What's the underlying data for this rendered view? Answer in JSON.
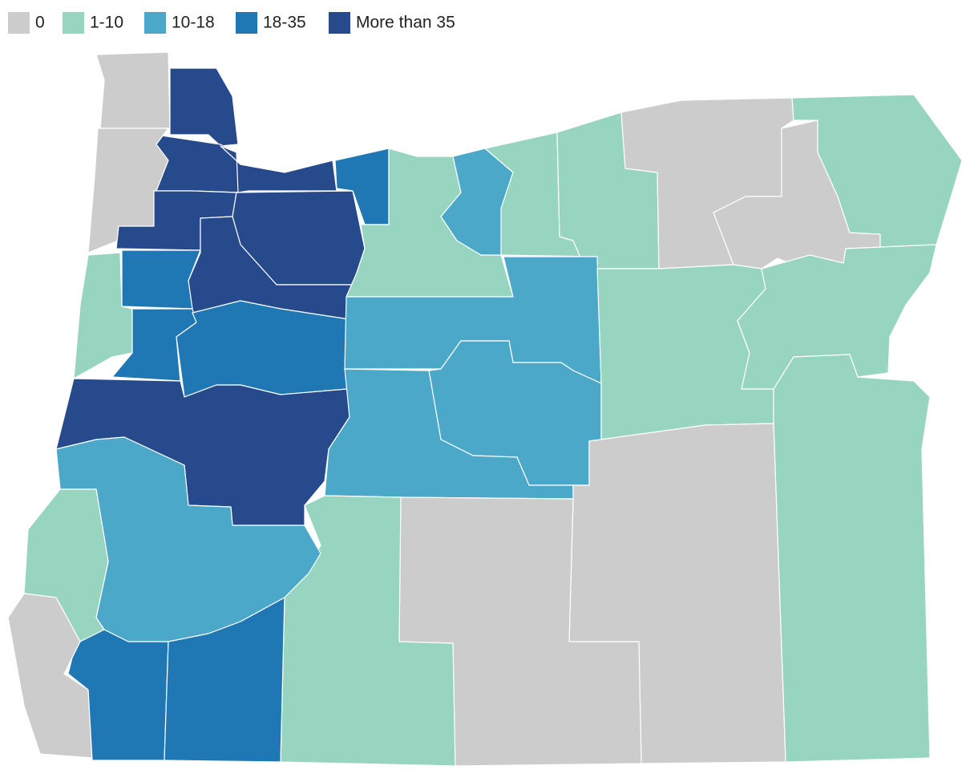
{
  "legend": {
    "items": [
      {
        "label": "0",
        "color": "#cccccc"
      },
      {
        "label": "1-10",
        "color": "#97d5c0"
      },
      {
        "label": "10-18",
        "color": "#4ba8c9"
      },
      {
        "label": "18-35",
        "color": "#1f78b4"
      },
      {
        "label": "More than 35",
        "color": "#264a8c"
      }
    ]
  }
}
